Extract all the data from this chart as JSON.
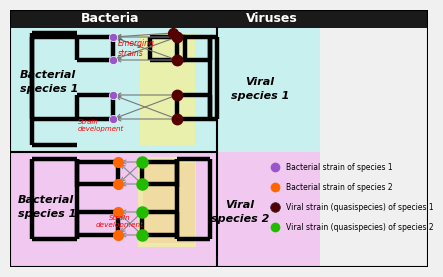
{
  "title_bacteria": "Bacteria",
  "title_viruses": "Viruses",
  "bg_color": "#f0f0f0",
  "cyan_bg": "#c8f0ee",
  "pink_bg": "#f0c8f0",
  "yellow_highlight": "#f0f0a0",
  "peach_highlight": "#f0d8a0",
  "header_bg": "#1a1a1a",
  "header_text": "#ffffff",
  "bacterial_sp1_color": "#9955cc",
  "bacterial_sp2_color": "#ff6600",
  "viral_sp1_color": "#550000",
  "viral_sp2_color": "#22bb00",
  "label_bacterial_sp1": "Bacterial\nspecies 1",
  "label_viral_sp1": "Viral\nspecies 1",
  "label_bacterial_sp1b": "Bacterial\nspecies 1",
  "label_viral_sp2": "Viral\nspecies 2",
  "emerging_strains": "Emerging\nstrains",
  "strain_development_upper": "Strain\ndevelopment",
  "strain_development_lower": "Strain\ndevelopment",
  "legend_items": [
    {
      "label": "Bacterial strain of species 1",
      "color": "#9955cc"
    },
    {
      "label": "Bacterial strain of species 2",
      "color": "#ff6600"
    },
    {
      "label": "Viral strain (quasispecies) of species 1",
      "color": "#550000"
    },
    {
      "label": "Viral strain (quasispecies) of species 2",
      "color": "#22bb00"
    }
  ]
}
